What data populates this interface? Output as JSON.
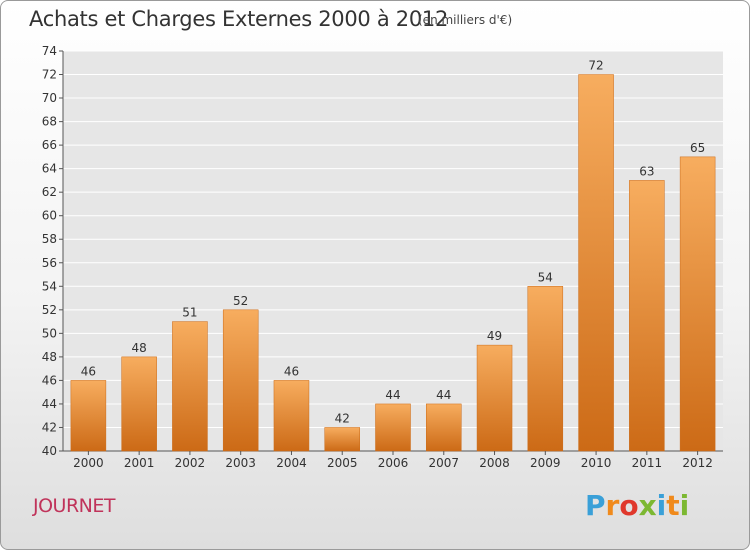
{
  "title": "Achats et Charges Externes 2000 à 2012",
  "unit_note": "(en milliers d'€)",
  "commune": "JOURNET",
  "logo": {
    "letters": [
      "P",
      "r",
      "o",
      "x",
      "i",
      "t",
      "i"
    ],
    "colors": [
      "#3aa0d8",
      "#f08a1c",
      "#e0382c",
      "#7cb832",
      "#3aa0d8",
      "#f08a1c",
      "#7cb832"
    ]
  },
  "colors": {
    "bar": "#f28a2e",
    "bar_light": "#f7ad5f",
    "bar_dark": "#cc6a16",
    "axis": "#555555",
    "grid": "#ffffff"
  },
  "chart_data": {
    "type": "bar",
    "title": "Achats et Charges Externes 2000 à 2012",
    "subtitle": "(en milliers d'€)",
    "categories": [
      "2000",
      "2001",
      "2002",
      "2003",
      "2004",
      "2005",
      "2006",
      "2007",
      "2008",
      "2009",
      "2010",
      "2011",
      "2012"
    ],
    "values": [
      46,
      48,
      51,
      52,
      46,
      42,
      44,
      44,
      49,
      54,
      72,
      63,
      65
    ],
    "ylim": [
      40,
      74
    ],
    "yticks": [
      40,
      42,
      44,
      46,
      48,
      50,
      52,
      54,
      56,
      58,
      60,
      62,
      64,
      66,
      68,
      70,
      72,
      74
    ],
    "grid": true,
    "xlabel": "",
    "ylabel": ""
  }
}
